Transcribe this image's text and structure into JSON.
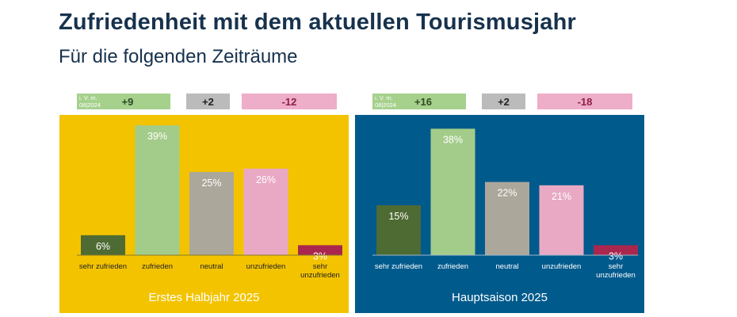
{
  "header": {
    "title": "Zufriedenheit mit dem aktuellen Tourismusjahr",
    "subtitle": "Für die folgenden Zeiträume"
  },
  "colors": {
    "panel_left": "#f3c300",
    "panel_right": "#005a8c",
    "sehr_zufrieden": "#4e6b33",
    "zufrieden": "#a3cc8a",
    "neutral": "#aca79b",
    "unzufrieden": "#e9a9c4",
    "sehr_unzufrieden": "#a9274e",
    "badge_plus": "#a6d18d",
    "badge_neutral": "#bbbbbb",
    "badge_minus": "#eeadc8"
  },
  "chart_data": [
    {
      "type": "bar",
      "title": "Erstes Halbjahr 2025",
      "categories": [
        "sehr zufrieden",
        "zufrieden",
        "neutral",
        "unzufrieden",
        "sehr unzufrieden"
      ],
      "values": [
        6,
        39,
        25,
        26,
        3
      ],
      "value_labels": [
        "6%",
        "39%",
        "25%",
        "26%",
        "3%"
      ],
      "ylim": [
        0,
        40
      ],
      "comparison": {
        "note": "i. V. m. 08|2024",
        "positive": "+9",
        "neutral": "+2",
        "negative": "-12"
      }
    },
    {
      "type": "bar",
      "title": "Hauptsaison 2025",
      "categories": [
        "sehr zufrieden",
        "zufrieden",
        "neutral",
        "unzufrieden",
        "sehr unzufrieden"
      ],
      "values": [
        15,
        38,
        22,
        21,
        3
      ],
      "value_labels": [
        "15%",
        "38%",
        "22%",
        "21%",
        "3%"
      ],
      "ylim": [
        0,
        40
      ],
      "comparison": {
        "note": "i. V. m. 08|2024",
        "positive": "+16",
        "neutral": "+2",
        "negative": "-18"
      }
    }
  ]
}
